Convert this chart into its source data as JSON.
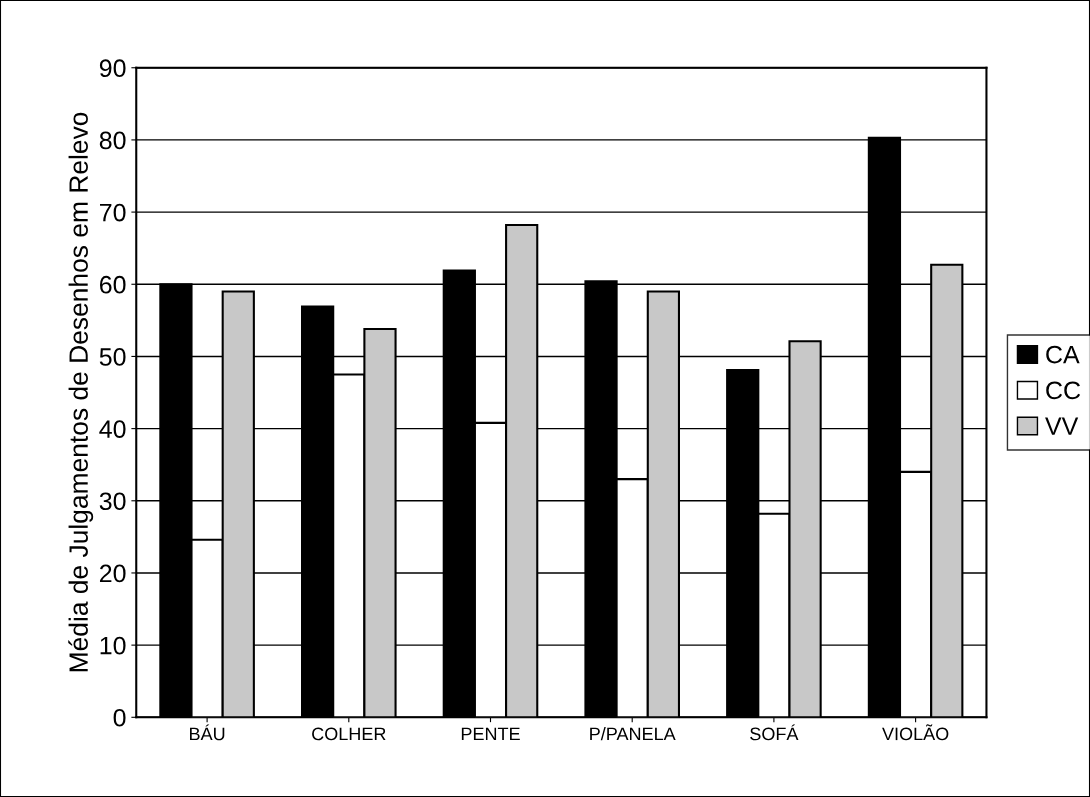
{
  "chart_data": {
    "type": "bar",
    "ylabel": "Média de Julgamentos de Desenhos em Relevo",
    "categories": [
      "BÁU",
      "COLHER",
      "PENTE",
      "P/PANELA",
      "SOFÁ",
      "VIOLÃO"
    ],
    "series": [
      {
        "name": "CA",
        "color": "#000000",
        "values": [
          60,
          56.9,
          61.9,
          60.4,
          48.1,
          80.3
        ]
      },
      {
        "name": "CC",
        "color": "#ffffff",
        "values": [
          24.6,
          47.5,
          40.8,
          33.0,
          28.2,
          34.0
        ]
      },
      {
        "name": "VV",
        "color": "#c8c8c8",
        "values": [
          59.0,
          53.8,
          68.2,
          59.0,
          52.1,
          62.7
        ]
      }
    ],
    "ylim": [
      0,
      90
    ],
    "yticks": [
      0,
      10,
      20,
      30,
      40,
      50,
      60,
      70,
      80,
      90
    ],
    "grid": "y",
    "legend": "right"
  }
}
